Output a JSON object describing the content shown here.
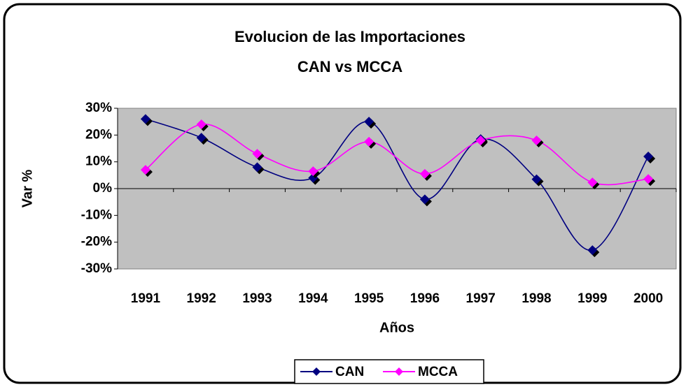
{
  "chart_data": {
    "type": "line",
    "title": "Evolucion de las Importaciones",
    "subtitle": "CAN vs MCCA",
    "y_label": "Var %",
    "x_label": "Años",
    "categories": [
      "1991",
      "1992",
      "1993",
      "1994",
      "1995",
      "1996",
      "1997",
      "1998",
      "1999",
      "2000"
    ],
    "series": [
      {
        "name": "CAN",
        "color": "#000080",
        "values": [
          26,
          19,
          8,
          4,
          25,
          -4,
          18.5,
          3.5,
          -23,
          12
        ]
      },
      {
        "name": "MCCA",
        "color": "#ff00ff",
        "values": [
          7,
          24,
          13,
          6.5,
          17.5,
          5.5,
          18,
          18,
          2.3,
          3.6
        ]
      }
    ],
    "ylim": [
      -30,
      30
    ],
    "yticks": [
      {
        "value": 30,
        "label": "30%"
      },
      {
        "value": 20,
        "label": "20%"
      },
      {
        "value": 10,
        "label": "10%"
      },
      {
        "value": 0,
        "label": "0%"
      },
      {
        "value": -10,
        "label": "-10%"
      },
      {
        "value": -20,
        "label": "-20%"
      },
      {
        "value": -30,
        "label": "-30%"
      }
    ],
    "smooth": true,
    "grid": false,
    "legend": "bottom"
  }
}
